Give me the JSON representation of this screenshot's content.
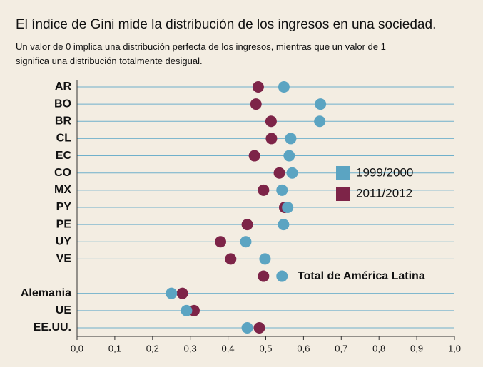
{
  "chart_data": {
    "type": "dotplot",
    "title": "El índice de Gini mide la distribución de los ingresos en una sociedad.",
    "subtitle": "Un valor de 0 implica una distribución perfecta de los ingresos, mientras que un valor de 1 significa una distribución totalmente desigual.",
    "annotation": "Total de América Latina",
    "categories": [
      "AR",
      "BO",
      "BR",
      "CL",
      "EC",
      "CO",
      "MX",
      "PY",
      "PE",
      "UY",
      "VE",
      null,
      "Alemania",
      "UE",
      "EE.UU."
    ],
    "series": [
      {
        "name": "1999/2000",
        "color": "#5ba4c2",
        "values": [
          0.548,
          0.645,
          0.643,
          0.566,
          0.562,
          0.57,
          0.543,
          0.558,
          0.547,
          0.447,
          0.498,
          0.543,
          0.25,
          0.29,
          0.451
        ]
      },
      {
        "name": "2011/2012",
        "color": "#7d2448",
        "values": [
          0.48,
          0.474,
          0.514,
          0.515,
          0.47,
          0.536,
          0.494,
          0.55,
          0.451,
          0.38,
          0.407,
          0.494,
          0.279,
          0.31,
          0.483
        ]
      }
    ],
    "xlim": [
      0,
      1
    ],
    "xticks": [
      {
        "value": 0,
        "label": "0,0"
      },
      {
        "value": 0.1,
        "label": "0,1"
      },
      {
        "value": 0.2,
        "label": "0,2"
      },
      {
        "value": 0.3,
        "label": "0,3"
      },
      {
        "value": 0.4,
        "label": "0,4"
      },
      {
        "value": 0.5,
        "label": "0,5"
      },
      {
        "value": 0.6,
        "label": "0,6"
      },
      {
        "value": 0.7,
        "label": "0,7"
      },
      {
        "value": 0.8,
        "label": "0,8"
      },
      {
        "value": 0.9,
        "label": "0,9"
      },
      {
        "value": 1,
        "label": "1,0"
      }
    ]
  }
}
